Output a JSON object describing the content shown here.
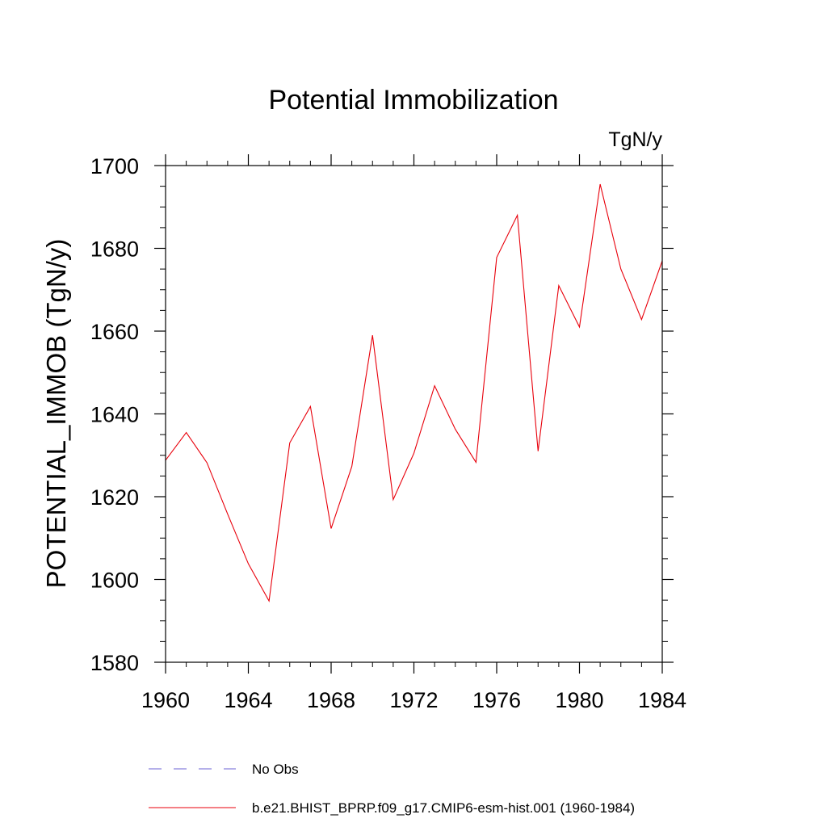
{
  "chart_data": {
    "type": "line",
    "title": "Potential Immobilization",
    "units_label": "TgN/y",
    "xlabel": "",
    "ylabel": "POTENTIAL_IMMOB  (TgN/y)",
    "xlim": [
      1960,
      1984
    ],
    "ylim": [
      1580,
      1700
    ],
    "x_ticks": [
      1960,
      1964,
      1968,
      1972,
      1976,
      1980,
      1984
    ],
    "x_tick_labels": [
      "1960",
      "1964",
      "1968",
      "1972",
      "1976",
      "1980",
      "1984"
    ],
    "y_ticks": [
      1580,
      1600,
      1620,
      1640,
      1660,
      1680,
      1700
    ],
    "y_tick_labels": [
      "1580",
      "1600",
      "1620",
      "1640",
      "1660",
      "1680",
      "1700"
    ],
    "x_minor_step": 1,
    "y_minor_step": 5,
    "grid": false,
    "legend_position": "bottom",
    "series": [
      {
        "name": "b.e21.BHIST_BPRP.f09_g17.CMIP6-esm-hist.001 (1960-1984)",
        "color": "#e8000b",
        "dash": "solid",
        "x": [
          1960,
          1961,
          1962,
          1963,
          1964,
          1965,
          1966,
          1967,
          1968,
          1969,
          1970,
          1971,
          1972,
          1973,
          1974,
          1975,
          1976,
          1977,
          1978,
          1979,
          1980,
          1981,
          1982,
          1983,
          1984
        ],
        "values": [
          1628.8,
          1635.5,
          1628.2,
          1615.8,
          1603.8,
          1594.8,
          1633.0,
          1641.8,
          1612.3,
          1627.3,
          1659.0,
          1619.3,
          1630.5,
          1646.8,
          1636.3,
          1628.3,
          1677.8,
          1688.0,
          1631.0,
          1671.0,
          1661.0,
          1695.5,
          1675.0,
          1662.8,
          1677.0
        ]
      }
    ],
    "legend": [
      {
        "label": "No Obs",
        "color": "#6b61d6",
        "dash": "dashed"
      },
      {
        "label": "b.e21.BHIST_BPRP.f09_g17.CMIP6-esm-hist.001 (1960-1984)",
        "color": "#e8000b",
        "dash": "solid"
      }
    ]
  }
}
